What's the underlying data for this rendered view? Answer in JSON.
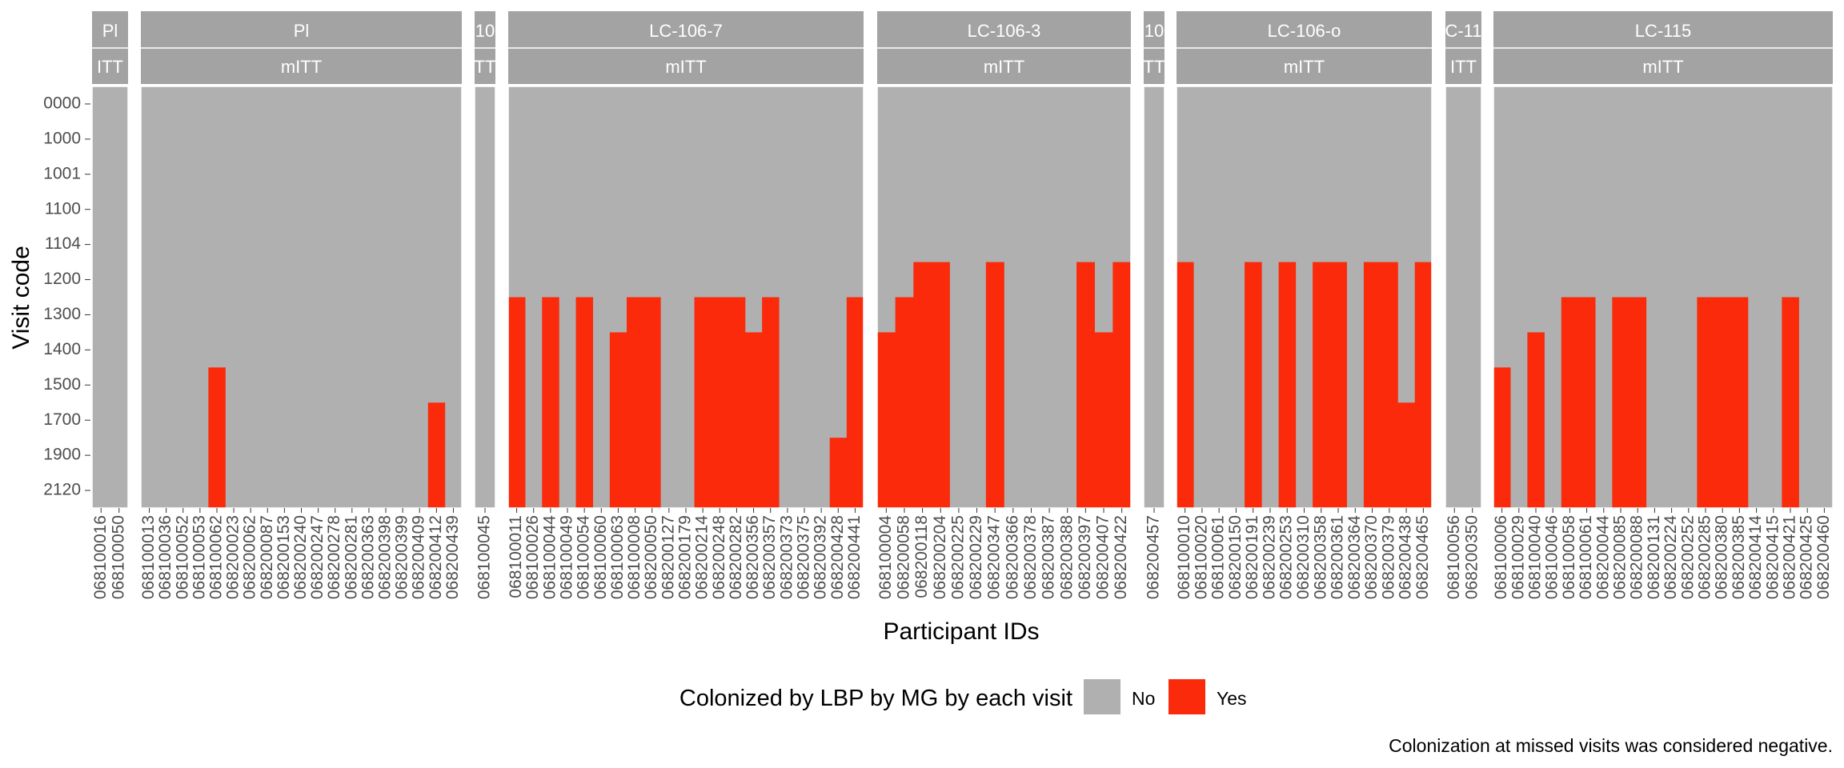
{
  "colors": {
    "no": "#b0b0b0",
    "yes": "#fa2a0a",
    "strip": "#a3a3a3",
    "grid": "#ffffff",
    "text": "#000000",
    "tick_text": "#4d4d4d",
    "strip_text": "#ffffff"
  },
  "chart_data": {
    "type": "heatmap",
    "xlabel": "Participant IDs",
    "ylabel": "Visit code",
    "visits": [
      "0000",
      "1000",
      "1001",
      "1100",
      "1104",
      "1200",
      "1300",
      "1400",
      "1500",
      "1700",
      "1900",
      "2120"
    ],
    "legend": {
      "title": "Colonized by LBP by MG by each visit",
      "position": "bottom",
      "entries": [
        "No",
        "Yes"
      ]
    },
    "caption": "Colonization at missed visits was considered negative.",
    "panels": [
      {
        "strip1": "Pl",
        "strip2": "ITT",
        "ids": [
          "068100016",
          "068100050"
        ],
        "first_yes": [
          null,
          null
        ]
      },
      {
        "strip1": "Pl",
        "strip2": "mITT",
        "ids": [
          "068100013",
          "068100036",
          "068100052",
          "068100053",
          "068100062",
          "068200023",
          "068200062",
          "068200087",
          "068200153",
          "068200240",
          "068200247",
          "068200278",
          "068200281",
          "068200363",
          "068200398",
          "068200399",
          "068200409",
          "068200412",
          "068200439"
        ],
        "first_yes": [
          null,
          null,
          null,
          null,
          "1500",
          null,
          null,
          null,
          null,
          null,
          null,
          null,
          null,
          null,
          null,
          null,
          null,
          "1700",
          null
        ]
      },
      {
        "strip1": "10",
        "strip2": "TT",
        "ids": [
          "068100045"
        ],
        "first_yes": [
          null
        ]
      },
      {
        "strip1": "LC-106-7",
        "strip2": "mITT",
        "ids": [
          "068100011",
          "068100026",
          "068100044",
          "068100049",
          "068100054",
          "068100060",
          "068100063",
          "068100008",
          "068200050",
          "068200127",
          "068200179",
          "068200214",
          "068200248",
          "068200282",
          "068200356",
          "068200357",
          "068200373",
          "068200375",
          "068200392",
          "068200428",
          "068200441"
        ],
        "first_yes": [
          "1300",
          null,
          "1300",
          null,
          "1300",
          null,
          "1400",
          "1300",
          "1300",
          null,
          null,
          "1300",
          "1300",
          "1300",
          "1400",
          "1300",
          null,
          null,
          null,
          "1900",
          "1300"
        ]
      },
      {
        "strip1": "LC-106-3",
        "strip2": "mITT",
        "ids": [
          "068100004",
          "068200058",
          "068200118",
          "068200204",
          "068200225",
          "068200229",
          "068200347",
          "068200366",
          "068200378",
          "068200387",
          "068200388",
          "068200397",
          "068200407",
          "068200422"
        ],
        "first_yes": [
          "1400",
          "1300",
          "1200",
          "1200",
          null,
          null,
          "1200",
          null,
          null,
          null,
          null,
          "1200",
          "1400",
          "1200"
        ]
      },
      {
        "strip1": "10",
        "strip2": "TT",
        "ids": [
          "068200457"
        ],
        "first_yes": [
          null
        ]
      },
      {
        "strip1": "LC-106-o",
        "strip2": "mITT",
        "ids": [
          "068100010",
          "068100020",
          "068100061",
          "068200150",
          "068200191",
          "068200239",
          "068200253",
          "068200310",
          "068200358",
          "068200361",
          "068200364",
          "068200370",
          "068200379",
          "068200438",
          "068200465"
        ],
        "first_yes": [
          "1200",
          null,
          null,
          null,
          "1200",
          null,
          "1200",
          null,
          "1200",
          "1200",
          null,
          "1200",
          "1200",
          "1700",
          "1200"
        ]
      },
      {
        "strip1": "C-11",
        "strip2": "ITT",
        "ids": [
          "068100056",
          "068200350"
        ],
        "first_yes": [
          null,
          null
        ]
      },
      {
        "strip1": "LC-115",
        "strip2": "mITT",
        "ids": [
          "068100006",
          "068100029",
          "068100040",
          "068100046",
          "068100058",
          "068100061",
          "068200044",
          "068200085",
          "068200088",
          "068200131",
          "068200224",
          "068200252",
          "068200285",
          "068200380",
          "068200385",
          "068200414",
          "068200415",
          "068200421",
          "068200425",
          "068200460"
        ],
        "first_yes": [
          "1500",
          null,
          "1400",
          null,
          "1300",
          "1300",
          null,
          "1300",
          "1300",
          null,
          null,
          null,
          "1300",
          "1300",
          "1300",
          null,
          null,
          "1300",
          null,
          null
        ]
      }
    ]
  }
}
